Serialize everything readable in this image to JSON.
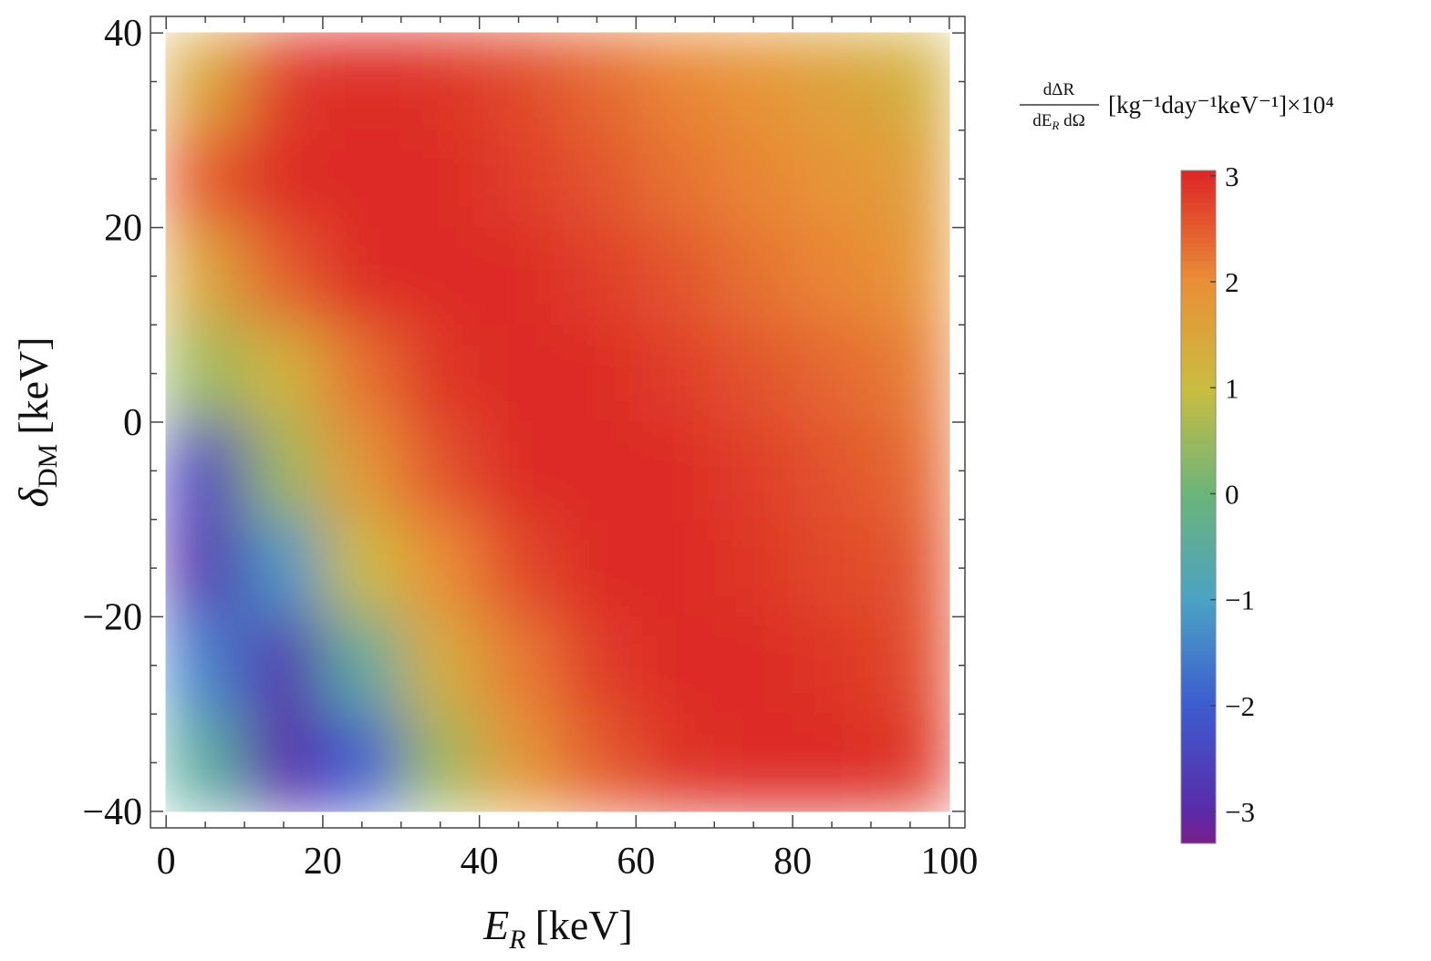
{
  "chart_data": {
    "type": "heatmap",
    "x_label": {
      "symbol": "E",
      "subscript": "R",
      "unit": "[keV]"
    },
    "y_label": {
      "symbol": "δ",
      "subscript": "DM",
      "unit": "[keV]"
    },
    "x": [
      5,
      15,
      25,
      35,
      45,
      55,
      65,
      75,
      85,
      95
    ],
    "y": [
      35,
      25,
      15,
      5,
      -5,
      -15,
      -25,
      -35
    ],
    "z": [
      [
        1.5,
        2.8,
        3.0,
        2.9,
        2.7,
        2.4,
        2.1,
        1.9,
        1.6,
        1.3
      ],
      [
        2.5,
        3.0,
        3.0,
        3.0,
        2.8,
        2.6,
        2.3,
        2.1,
        1.9,
        1.7
      ],
      [
        1.5,
        2.5,
        3.0,
        3.0,
        3.0,
        2.8,
        2.6,
        2.3,
        2.1,
        1.9
      ],
      [
        0.5,
        1.2,
        2.3,
        2.9,
        3.0,
        3.0,
        2.8,
        2.6,
        2.4,
        2.2
      ],
      [
        -2.5,
        0.5,
        1.8,
        2.6,
        3.0,
        3.0,
        3.0,
        2.8,
        2.6,
        2.4
      ],
      [
        -2.8,
        -1.2,
        1.0,
        2.0,
        2.7,
        3.0,
        3.0,
        2.9,
        2.7,
        2.6
      ],
      [
        -1.5,
        -2.8,
        -0.5,
        1.3,
        2.2,
        2.8,
        3.0,
        3.0,
        2.9,
        2.7
      ],
      [
        -0.5,
        -3.0,
        -2.0,
        0.5,
        1.8,
        2.5,
        2.9,
        3.0,
        3.0,
        2.9
      ]
    ],
    "xlim": [
      -2,
      102
    ],
    "ylim": [
      -41.7,
      41.7
    ],
    "xticks": [
      0,
      20,
      40,
      60,
      80,
      100
    ],
    "yticks": [
      {
        "value": -40,
        "label": "−40"
      },
      {
        "value": -20,
        "label": "−20"
      },
      0,
      20,
      40
    ],
    "xminorticks": [
      5,
      10,
      15,
      25,
      30,
      35,
      45,
      50,
      55,
      65,
      70,
      75,
      85,
      90,
      95
    ],
    "yminorticks": [
      -35,
      -30,
      -25,
      -15,
      -10,
      -5,
      5,
      10,
      15,
      25,
      30,
      35
    ],
    "colorbar": {
      "label": {
        "numerator": "dΔR",
        "denominator": "dE",
        "denominator_subscript": "R",
        "denominator_rest": " dΩ",
        "units": "[kg⁻¹day⁻¹keV⁻¹]×10⁴"
      },
      "lim": [
        -3.3,
        3.05
      ],
      "ticks": [
        {
          "value": -3,
          "label": "−3"
        },
        {
          "value": -2,
          "label": "−2"
        },
        {
          "value": -1,
          "label": "−1"
        },
        0,
        1,
        2,
        3
      ]
    },
    "colormap": [
      [
        -3.3,
        "#7a1f8a"
      ],
      [
        -3,
        "#5b2aa8"
      ],
      [
        -2,
        "#3d5ccf"
      ],
      [
        -1,
        "#4aa3c4"
      ],
      [
        0,
        "#6cb47a"
      ],
      [
        1,
        "#c9bd40"
      ],
      [
        2,
        "#ea8f37"
      ],
      [
        3,
        "#dd2a26"
      ]
    ]
  }
}
